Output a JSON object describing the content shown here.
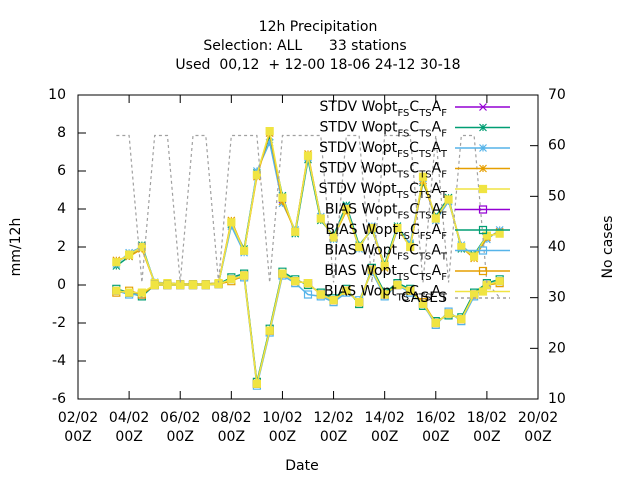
{
  "chart_data": {
    "type": "line",
    "title": "12h Precipitation",
    "subtitle": "Selection: ALL      33 stations",
    "subtitle2": "Used  00,12  + 12-00 18-06 24-12 30-18",
    "xlabel": "Date",
    "ylabel": "mm/12h",
    "y2label": "No cases",
    "legend": "top-right",
    "x": [
      3.5,
      4,
      4.5,
      5,
      5.5,
      6,
      6.5,
      7,
      7.5,
      8,
      8.5,
      9,
      9.5,
      10,
      10.5,
      11,
      11.5,
      12,
      12.5,
      13,
      13.5,
      14,
      14.5,
      15,
      15.5,
      16,
      16.5,
      17,
      17.5,
      18,
      18.5
    ],
    "xlim": [
      2,
      20
    ],
    "xticks": [
      {
        "value": 2,
        "label": "02/02 00Z"
      },
      {
        "value": 4,
        "label": "04/02 00Z"
      },
      {
        "value": 6,
        "label": "06/02 00Z"
      },
      {
        "value": 8,
        "label": "08/02 00Z"
      },
      {
        "value": 10,
        "label": "10/02 00Z"
      },
      {
        "value": 12,
        "label": "12/02 00Z"
      },
      {
        "value": 14,
        "label": "14/02 00Z"
      },
      {
        "value": 16,
        "label": "16/02 00Z"
      },
      {
        "value": 18,
        "label": "18/02 00Z"
      },
      {
        "value": 20,
        "label": "20/02 00Z"
      }
    ],
    "ylim": [
      -6,
      10
    ],
    "yticks": [
      -6,
      -4,
      -2,
      0,
      2,
      4,
      6,
      8,
      10
    ],
    "y2lim": [
      10,
      70
    ],
    "y2ticks": [
      10,
      20,
      30,
      40,
      50,
      60,
      70
    ],
    "series": [
      {
        "name": "STDV Wopt_{FS}C_{TS}A_{F}",
        "color": "#9400d3",
        "marker": "x",
        "values": [
          1.2,
          1.6,
          2.0,
          0.1,
          0.1,
          0.05,
          0.05,
          0.05,
          0.1,
          3.3,
          1.8,
          5.8,
          8.0,
          4.5,
          2.8,
          6.8,
          3.5,
          2.5,
          4.0,
          2.0,
          3.0,
          1.0,
          3.0,
          2.0,
          5.5,
          3.5,
          4.5,
          2.0,
          1.5,
          2.5,
          2.8
        ]
      },
      {
        "name": "STDV Wopt_{FS}C_{TS}A_{F}",
        "color": "#009e73",
        "marker": "asterisk",
        "values": [
          1.0,
          1.5,
          2.1,
          0.1,
          0.1,
          0.05,
          0.05,
          0.05,
          0.1,
          3.2,
          1.9,
          5.9,
          7.8,
          4.7,
          2.7,
          6.6,
          3.4,
          2.6,
          4.2,
          2.1,
          2.9,
          1.1,
          3.1,
          2.1,
          5.4,
          3.6,
          4.6,
          1.9,
          1.6,
          2.6,
          2.7
        ]
      },
      {
        "name": "STDV Wopt_{FS}C_{TS}A_{T}",
        "color": "#56b4e9",
        "marker": "star",
        "values": [
          1.1,
          1.7,
          2.0,
          0.15,
          0.1,
          0.05,
          0.05,
          0.05,
          0.1,
          3.1,
          1.7,
          6.0,
          7.5,
          4.3,
          2.9,
          6.7,
          3.6,
          2.4,
          4.1,
          1.9,
          3.1,
          1.0,
          2.9,
          2.2,
          5.6,
          3.4,
          4.4,
          2.1,
          1.5,
          2.4,
          2.9
        ]
      },
      {
        "name": "STDV Wopt_{TS}C_{TS}A_{F}",
        "color": "#e69f00",
        "marker": "star",
        "values": [
          1.3,
          1.5,
          1.9,
          0.1,
          0.1,
          0.05,
          0.05,
          0.05,
          0.1,
          3.4,
          1.8,
          5.7,
          8.0,
          4.4,
          2.8,
          6.9,
          3.5,
          2.5,
          3.9,
          2.0,
          3.0,
          0.9,
          3.0,
          2.0,
          5.5,
          3.5,
          4.5,
          2.0,
          1.4,
          2.5,
          2.8
        ]
      },
      {
        "name": "STDV Wopt_{TS}C_{TS}A_{T}",
        "color": "#f0e442",
        "marker": "filled-square",
        "values": [
          1.2,
          1.6,
          2.0,
          0.1,
          0.1,
          0.05,
          0.05,
          0.05,
          0.1,
          3.3,
          1.8,
          5.8,
          8.1,
          4.6,
          2.8,
          6.8,
          3.5,
          2.5,
          4.0,
          2.0,
          3.0,
          1.0,
          3.0,
          2.0,
          5.7,
          3.5,
          4.5,
          2.0,
          1.5,
          2.6,
          2.7
        ]
      },
      {
        "name": "BIAS Wopt_{FS}C_{TS}A_{F}",
        "color": "#9400d3",
        "marker": "square",
        "values": [
          -0.3,
          -0.4,
          -0.5,
          0,
          0,
          0,
          0,
          0,
          0.05,
          0.3,
          0.5,
          -5.2,
          -2.4,
          0.6,
          0.2,
          0.1,
          -0.5,
          -0.8,
          -0.3,
          -0.9,
          0.8,
          -0.5,
          0,
          -0.3,
          -1.0,
          -2.0,
          -1.5,
          -1.8,
          -0.5,
          0,
          0.2
        ]
      },
      {
        "name": "BIAS Wopt_{FS}C_{FS}A_{F}",
        "color": "#009e73",
        "marker": "square",
        "values": [
          -0.2,
          -0.4,
          -0.6,
          0,
          0,
          0,
          0,
          0,
          0.05,
          0.4,
          0.6,
          -5.1,
          -2.3,
          0.7,
          0.3,
          0.0,
          -0.4,
          -0.7,
          -0.2,
          -1.0,
          0.9,
          -0.4,
          0.1,
          -0.2,
          -1.1,
          -1.9,
          -1.6,
          -1.7,
          -0.4,
          0.1,
          0.3
        ]
      },
      {
        "name": "BIAS Wopt_{FS}C_{TS}A_{T}",
        "color": "#56b4e9",
        "marker": "square",
        "values": [
          -0.3,
          -0.5,
          -0.5,
          0,
          0,
          0,
          0,
          0,
          0.05,
          0.3,
          0.4,
          -5.3,
          -2.5,
          0.5,
          0.1,
          -0.5,
          -0.6,
          -0.9,
          -0.4,
          -0.8,
          0.7,
          -0.6,
          0,
          -0.4,
          -1.0,
          -2.1,
          -1.4,
          -1.9,
          -0.6,
          0,
          0.2
        ]
      },
      {
        "name": "BIAS Wopt_{TS}C_{TS}A_{F}",
        "color": "#e69f00",
        "marker": "square",
        "values": [
          -0.4,
          -0.3,
          -0.5,
          0,
          0,
          0,
          0,
          0,
          0.05,
          0.2,
          0.5,
          -5.2,
          -2.4,
          0.6,
          0.2,
          0.1,
          -0.5,
          -0.8,
          -0.3,
          -0.9,
          0.8,
          -0.5,
          0,
          -0.3,
          -0.9,
          -2.0,
          -1.5,
          -1.8,
          -0.5,
          0,
          0.1
        ]
      },
      {
        "name": "BIAS Wopt_{TS}C_{TS}A_{T}",
        "color": "#f0e442",
        "marker": "filled-square",
        "values": [
          -0.3,
          -0.4,
          -0.4,
          0,
          0,
          0,
          0,
          0,
          0.05,
          0.3,
          0.5,
          -5.2,
          -2.4,
          0.6,
          0.2,
          0.1,
          -0.5,
          -0.8,
          -0.3,
          -0.9,
          0.8,
          -0.5,
          0,
          -0.3,
          -1.0,
          -2.0,
          -1.5,
          -1.8,
          -0.5,
          0,
          0.2
        ]
      },
      {
        "name": "CASES",
        "color": "#a0a0a0",
        "marker": "none",
        "dash": true,
        "axis": "y2",
        "values": [
          62,
          62,
          33,
          62,
          62,
          33,
          62,
          62,
          33,
          62,
          62,
          62,
          33,
          62,
          62,
          62,
          62,
          33,
          62,
          62,
          33,
          62,
          62,
          62,
          33,
          62,
          33,
          62,
          62,
          33,
          30
        ]
      }
    ]
  }
}
